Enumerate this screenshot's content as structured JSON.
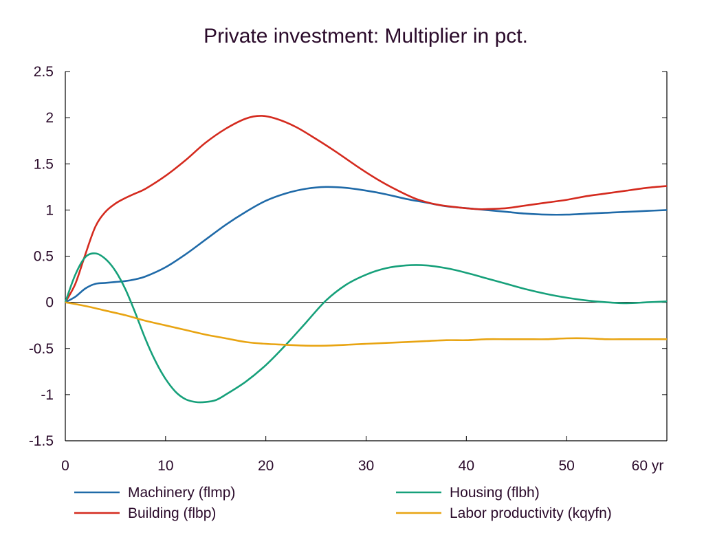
{
  "chart_data": {
    "type": "line",
    "title": "Private investment: Multiplier in pct.",
    "xlabel": "",
    "ylabel": "",
    "xlim": [
      0,
      60
    ],
    "ylim": [
      -1.5,
      2.5
    ],
    "x_ticks": [
      0,
      10,
      20,
      30,
      40,
      50,
      60
    ],
    "x_tick_labels": [
      "0",
      "10",
      "20",
      "30",
      "40",
      "50",
      "60 yr"
    ],
    "y_ticks": [
      -1.5,
      -1,
      -0.5,
      0,
      0.5,
      1,
      1.5,
      2,
      2.5
    ],
    "y_tick_labels": [
      "-1.5",
      "-1",
      "-0.5",
      "0",
      "0.5",
      "1",
      "1.5",
      "2",
      "2.5"
    ],
    "grid": false,
    "legend_position": "bottom",
    "series": [
      {
        "name": "Machinery (flmp)",
        "color": "#1f6aa8",
        "x": [
          0,
          1,
          2,
          3,
          4,
          5,
          6,
          7,
          8,
          10,
          12,
          14,
          16,
          18,
          20,
          22,
          24,
          26,
          28,
          30,
          32,
          34,
          36,
          38,
          40,
          42,
          44,
          46,
          48,
          50,
          52,
          54,
          56,
          58,
          60
        ],
        "y": [
          0,
          0.06,
          0.15,
          0.2,
          0.21,
          0.22,
          0.23,
          0.25,
          0.28,
          0.38,
          0.52,
          0.68,
          0.84,
          0.98,
          1.1,
          1.18,
          1.23,
          1.25,
          1.24,
          1.21,
          1.17,
          1.12,
          1.08,
          1.04,
          1.02,
          1.0,
          0.98,
          0.96,
          0.95,
          0.95,
          0.96,
          0.97,
          0.98,
          0.99,
          1.0
        ]
      },
      {
        "name": "Building (flbp)",
        "color": "#d42a1e",
        "x": [
          0,
          1,
          2,
          3,
          4,
          5,
          6,
          7,
          8,
          10,
          12,
          14,
          16,
          18,
          19.5,
          21,
          23,
          25,
          27,
          29,
          31,
          33,
          35,
          37,
          39,
          41,
          42,
          44,
          46,
          48,
          50,
          52,
          54,
          56,
          58,
          60
        ],
        "y": [
          0,
          0.2,
          0.52,
          0.82,
          0.98,
          1.07,
          1.13,
          1.18,
          1.23,
          1.37,
          1.54,
          1.73,
          1.88,
          1.99,
          2.02,
          1.99,
          1.9,
          1.77,
          1.63,
          1.48,
          1.34,
          1.22,
          1.12,
          1.06,
          1.03,
          1.01,
          1.01,
          1.02,
          1.05,
          1.08,
          1.11,
          1.15,
          1.18,
          1.21,
          1.24,
          1.26
        ]
      },
      {
        "name": "Housing (flbh)",
        "color": "#16a07a",
        "x": [
          0,
          1,
          2,
          3,
          4,
          5,
          6,
          7,
          8,
          9,
          10,
          11,
          12,
          13,
          14,
          15,
          16,
          18,
          20,
          22,
          24,
          26,
          28,
          30,
          32,
          34,
          36,
          38,
          40,
          42,
          44,
          46,
          48,
          50,
          52,
          54,
          56,
          58,
          60
        ],
        "y": [
          0,
          0.3,
          0.49,
          0.53,
          0.47,
          0.34,
          0.14,
          -0.12,
          -0.4,
          -0.64,
          -0.83,
          -0.97,
          -1.05,
          -1.08,
          -1.08,
          -1.06,
          -1.0,
          -0.86,
          -0.68,
          -0.46,
          -0.22,
          0.02,
          0.19,
          0.3,
          0.37,
          0.4,
          0.4,
          0.37,
          0.32,
          0.26,
          0.2,
          0.14,
          0.09,
          0.05,
          0.02,
          0.0,
          -0.01,
          0.0,
          0.01
        ]
      },
      {
        "name": "Labor productivity (kqyfn)",
        "color": "#e8a412",
        "x": [
          0,
          2,
          4,
          6,
          8,
          10,
          12,
          14,
          16,
          18,
          20,
          22,
          24,
          26,
          28,
          30,
          32,
          34,
          36,
          38,
          40,
          42,
          44,
          46,
          48,
          50,
          52,
          54,
          56,
          58,
          60
        ],
        "y": [
          0,
          -0.04,
          -0.09,
          -0.14,
          -0.2,
          -0.25,
          -0.3,
          -0.35,
          -0.39,
          -0.43,
          -0.45,
          -0.46,
          -0.47,
          -0.47,
          -0.46,
          -0.45,
          -0.44,
          -0.43,
          -0.42,
          -0.41,
          -0.41,
          -0.4,
          -0.4,
          -0.4,
          -0.4,
          -0.39,
          -0.39,
          -0.4,
          -0.4,
          -0.4,
          -0.4
        ]
      }
    ]
  }
}
